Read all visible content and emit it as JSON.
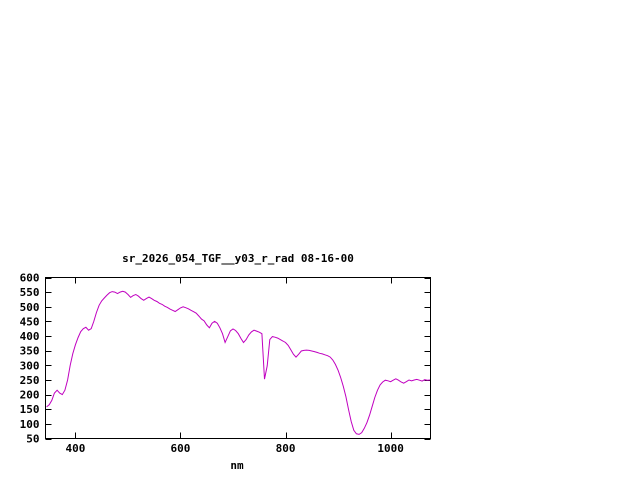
{
  "page": {
    "background_color": "#ffffff"
  },
  "chart_data": {
    "type": "line",
    "title": "sr_2026_054_TGF__y03_r_rad 08-16-00",
    "xlabel": "nm",
    "ylabel": "",
    "xlim": [
      343,
      1076
    ],
    "ylim": [
      50,
      600
    ],
    "x_ticks": [
      400,
      600,
      800,
      1000
    ],
    "y_ticks": [
      50,
      100,
      150,
      200,
      250,
      300,
      350,
      400,
      450,
      500,
      550,
      600
    ],
    "grid": false,
    "legend_position": "none",
    "line_color": "#c000c0",
    "axis_color": "#000000",
    "series": [
      {
        "name": "sr_2026_054_TGF__y03_r_rad",
        "points": [
          [
            345,
            158
          ],
          [
            350,
            165
          ],
          [
            355,
            180
          ],
          [
            360,
            205
          ],
          [
            365,
            215
          ],
          [
            370,
            205
          ],
          [
            375,
            200
          ],
          [
            380,
            215
          ],
          [
            385,
            250
          ],
          [
            390,
            300
          ],
          [
            395,
            340
          ],
          [
            400,
            370
          ],
          [
            405,
            395
          ],
          [
            410,
            415
          ],
          [
            415,
            425
          ],
          [
            420,
            430
          ],
          [
            425,
            420
          ],
          [
            430,
            425
          ],
          [
            435,
            450
          ],
          [
            440,
            480
          ],
          [
            445,
            505
          ],
          [
            450,
            520
          ],
          [
            455,
            530
          ],
          [
            460,
            540
          ],
          [
            465,
            548
          ],
          [
            470,
            552
          ],
          [
            475,
            550
          ],
          [
            480,
            545
          ],
          [
            485,
            550
          ],
          [
            490,
            553
          ],
          [
            495,
            550
          ],
          [
            500,
            542
          ],
          [
            505,
            532
          ],
          [
            510,
            538
          ],
          [
            515,
            542
          ],
          [
            520,
            536
          ],
          [
            525,
            528
          ],
          [
            530,
            522
          ],
          [
            535,
            528
          ],
          [
            540,
            533
          ],
          [
            545,
            528
          ],
          [
            550,
            522
          ],
          [
            555,
            518
          ],
          [
            560,
            512
          ],
          [
            565,
            508
          ],
          [
            570,
            502
          ],
          [
            575,
            498
          ],
          [
            580,
            492
          ],
          [
            585,
            488
          ],
          [
            590,
            484
          ],
          [
            595,
            490
          ],
          [
            600,
            496
          ],
          [
            605,
            500
          ],
          [
            610,
            497
          ],
          [
            615,
            493
          ],
          [
            620,
            488
          ],
          [
            625,
            483
          ],
          [
            630,
            478
          ],
          [
            635,
            468
          ],
          [
            640,
            458
          ],
          [
            645,
            452
          ],
          [
            650,
            438
          ],
          [
            655,
            428
          ],
          [
            660,
            444
          ],
          [
            665,
            450
          ],
          [
            670,
            444
          ],
          [
            675,
            428
          ],
          [
            680,
            408
          ],
          [
            685,
            378
          ],
          [
            690,
            398
          ],
          [
            695,
            418
          ],
          [
            700,
            424
          ],
          [
            705,
            419
          ],
          [
            710,
            408
          ],
          [
            715,
            392
          ],
          [
            720,
            378
          ],
          [
            725,
            388
          ],
          [
            730,
            404
          ],
          [
            735,
            414
          ],
          [
            740,
            420
          ],
          [
            745,
            417
          ],
          [
            750,
            413
          ],
          [
            755,
            408
          ],
          [
            760,
            253
          ],
          [
            765,
            298
          ],
          [
            770,
            388
          ],
          [
            775,
            398
          ],
          [
            780,
            396
          ],
          [
            785,
            393
          ],
          [
            790,
            388
          ],
          [
            795,
            383
          ],
          [
            800,
            378
          ],
          [
            805,
            368
          ],
          [
            810,
            353
          ],
          [
            815,
            338
          ],
          [
            820,
            328
          ],
          [
            825,
            338
          ],
          [
            830,
            349
          ],
          [
            835,
            351
          ],
          [
            840,
            352
          ],
          [
            845,
            351
          ],
          [
            850,
            349
          ],
          [
            855,
            347
          ],
          [
            860,
            344
          ],
          [
            865,
            341
          ],
          [
            870,
            339
          ],
          [
            875,
            336
          ],
          [
            880,
            333
          ],
          [
            885,
            328
          ],
          [
            890,
            318
          ],
          [
            895,
            303
          ],
          [
            900,
            283
          ],
          [
            905,
            258
          ],
          [
            910,
            228
          ],
          [
            915,
            193
          ],
          [
            920,
            148
          ],
          [
            925,
            108
          ],
          [
            930,
            78
          ],
          [
            935,
            66
          ],
          [
            940,
            64
          ],
          [
            945,
            70
          ],
          [
            950,
            85
          ],
          [
            955,
            104
          ],
          [
            960,
            130
          ],
          [
            965,
            160
          ],
          [
            970,
            190
          ],
          [
            975,
            215
          ],
          [
            980,
            233
          ],
          [
            985,
            243
          ],
          [
            990,
            249
          ],
          [
            995,
            247
          ],
          [
            1000,
            244
          ],
          [
            1005,
            249
          ],
          [
            1010,
            254
          ],
          [
            1015,
            249
          ],
          [
            1020,
            243
          ],
          [
            1025,
            239
          ],
          [
            1030,
            244
          ],
          [
            1035,
            250
          ],
          [
            1040,
            247
          ],
          [
            1045,
            250
          ],
          [
            1050,
            252
          ],
          [
            1055,
            249
          ],
          [
            1060,
            246
          ],
          [
            1065,
            251
          ],
          [
            1070,
            249
          ],
          [
            1075,
            250
          ]
        ]
      }
    ]
  }
}
